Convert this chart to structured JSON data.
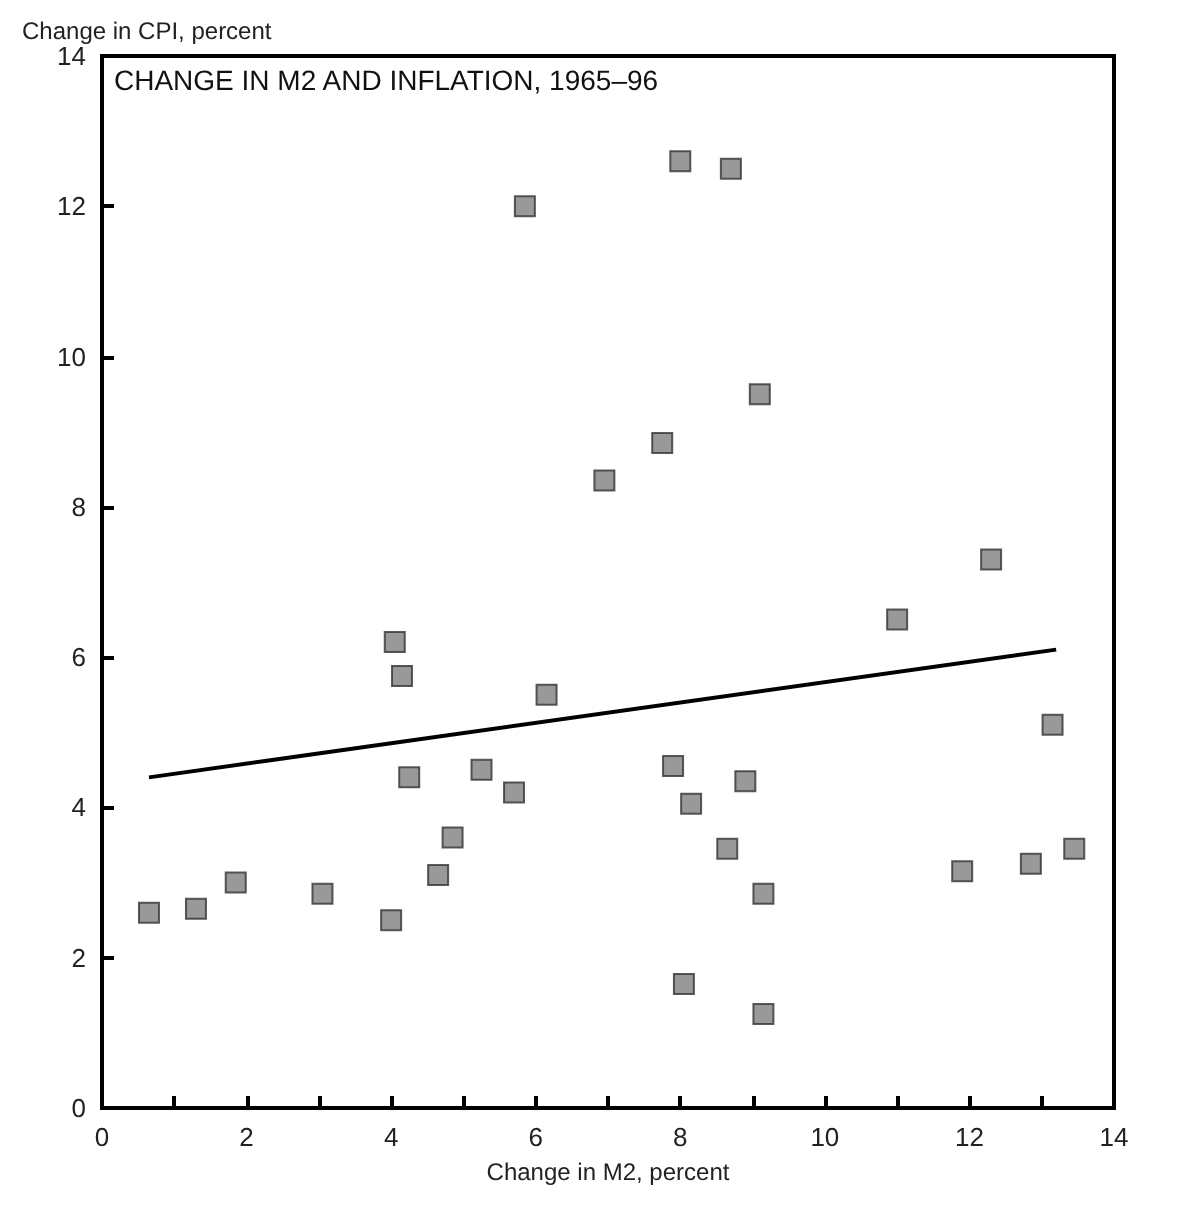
{
  "chart_data": {
    "type": "scatter",
    "title": "CHANGE IN M2 AND INFLATION, 1965–96",
    "xlabel": "Change in M2, percent",
    "ylabel": "Change in CPI, percent",
    "x": [
      0.65,
      1.3,
      1.85,
      3.05,
      4.0,
      4.05,
      4.15,
      4.25,
      4.65,
      4.85,
      5.25,
      5.7,
      5.85,
      6.15,
      6.95,
      7.75,
      7.9,
      8.0,
      8.05,
      8.15,
      8.65,
      8.7,
      8.9,
      9.1,
      9.15,
      9.15,
      11.0,
      11.9,
      12.3,
      12.85,
      13.15,
      13.45
    ],
    "series": [
      {
        "color": "#7f7f7f",
        "marker": "square",
        "values": [
          2.6,
          2.65,
          3.0,
          2.85,
          2.5,
          6.2,
          5.75,
          4.4,
          3.1,
          3.6,
          4.5,
          4.2,
          12.0,
          5.5,
          8.35,
          8.85,
          4.55,
          12.6,
          1.65,
          4.05,
          3.45,
          12.5,
          4.35,
          9.5,
          2.85,
          1.25,
          6.5,
          3.15,
          7.3,
          3.25,
          5.1,
          3.45
        ]
      },
      {
        "type": "line",
        "color": "#000000",
        "marker": "none",
        "x": [
          0.65,
          13.2
        ],
        "values": [
          4.4,
          6.1
        ]
      }
    ],
    "xlim": [
      0,
      14
    ],
    "ylim": [
      0,
      14
    ],
    "xticks": [
      0,
      {
        "value": 1,
        "label": null
      },
      2,
      {
        "value": 3,
        "label": null
      },
      4,
      {
        "value": 5,
        "label": null
      },
      6,
      {
        "value": 7,
        "label": null
      },
      8,
      {
        "value": 9,
        "label": null
      },
      10,
      {
        "value": 11,
        "label": null
      },
      12,
      {
        "value": 13,
        "label": null
      },
      14
    ],
    "yticks": [
      0,
      2,
      4,
      6,
      8,
      10,
      12,
      14
    ],
    "grid": false
  }
}
